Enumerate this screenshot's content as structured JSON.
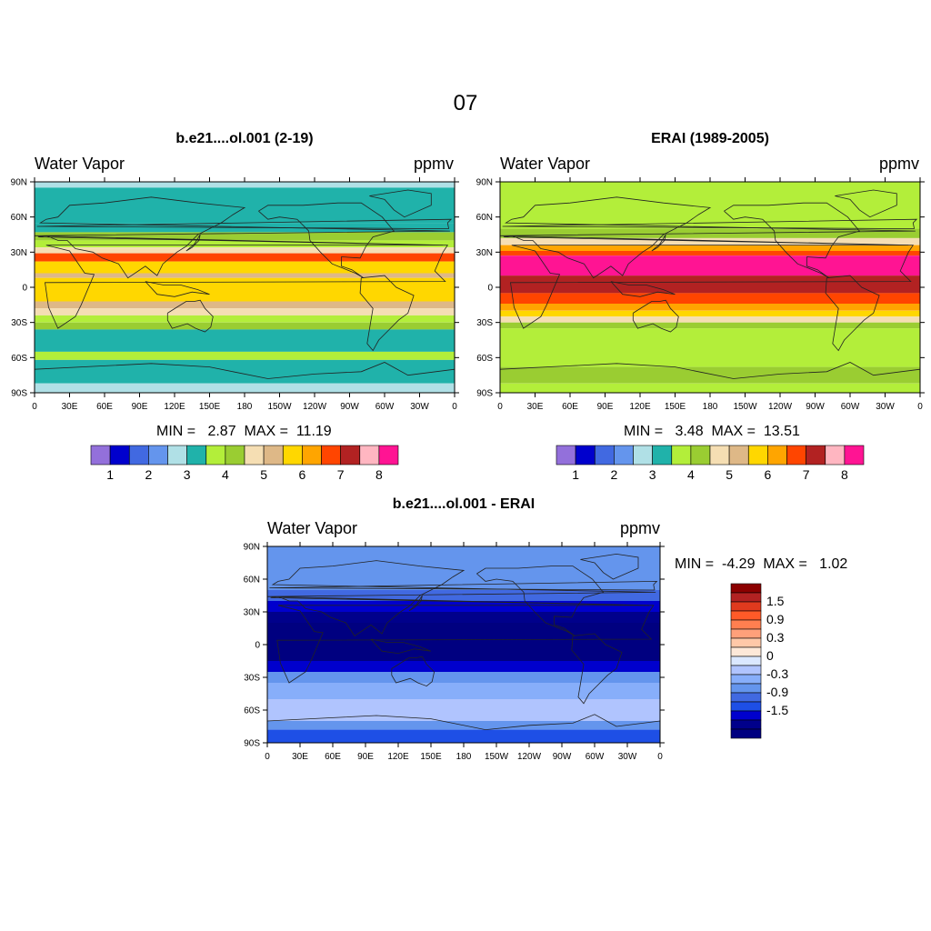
{
  "page_title": "07",
  "lon_ticks": [
    "0",
    "30E",
    "60E",
    "90E",
    "120E",
    "150E",
    "180",
    "150W",
    "120W",
    "90W",
    "60W",
    "30W",
    "0"
  ],
  "lat_ticks": [
    "90N",
    "60N",
    "30N",
    "0",
    "30S",
    "60S",
    "90S"
  ],
  "panels": [
    {
      "title": "b.e21....ol.001 (2-19)",
      "left_label": "Water Vapor",
      "right_label": "ppmv",
      "min_max": "MIN =   2.87  MAX =  11.19",
      "colorbar_labels": [
        "1",
        "2",
        "3",
        "4",
        "5",
        "6",
        "7",
        "8"
      ],
      "bands": [
        {
          "lat": 90,
          "color": "#b0e0e6"
        },
        {
          "lat": 85,
          "color": "#20b2aa"
        },
        {
          "lat": 55,
          "color": "#20b2aa"
        },
        {
          "lat": 47,
          "color": "#9acd32"
        },
        {
          "lat": 40,
          "color": "#b3ee3a"
        },
        {
          "lat": 34,
          "color": "#f5deb3"
        },
        {
          "lat": 29,
          "color": "#ff4500"
        },
        {
          "lat": 22,
          "color": "#ffd700"
        },
        {
          "lat": 12,
          "color": "#deb887"
        },
        {
          "lat": 8,
          "color": "#ffd700"
        },
        {
          "lat": -12,
          "color": "#deb887"
        },
        {
          "lat": -18,
          "color": "#f5deb3"
        },
        {
          "lat": -24,
          "color": "#b3ee3a"
        },
        {
          "lat": -30,
          "color": "#9acd32"
        },
        {
          "lat": -36,
          "color": "#20b2aa"
        },
        {
          "lat": -55,
          "color": "#b3ee3a"
        },
        {
          "lat": -62,
          "color": "#20b2aa"
        },
        {
          "lat": -82,
          "color": "#b0e0e6"
        }
      ]
    },
    {
      "title": "ERAI (1989-2005)",
      "left_label": "Water Vapor",
      "right_label": "ppmv",
      "min_max": "MIN =   3.48  MAX =  13.51",
      "colorbar_labels": [
        "1",
        "2",
        "3",
        "4",
        "5",
        "6",
        "7",
        "8"
      ],
      "bands": [
        {
          "lat": 90,
          "color": "#b3ee3a"
        },
        {
          "lat": 50,
          "color": "#9acd32"
        },
        {
          "lat": 42,
          "color": "#f5deb3"
        },
        {
          "lat": 36,
          "color": "#ffa500"
        },
        {
          "lat": 31,
          "color": "#ff4500"
        },
        {
          "lat": 27,
          "color": "#ff1493"
        },
        {
          "lat": 10,
          "color": "#b22222"
        },
        {
          "lat": -5,
          "color": "#ff4500"
        },
        {
          "lat": -14,
          "color": "#ffa500"
        },
        {
          "lat": -20,
          "color": "#ffd700"
        },
        {
          "lat": -25,
          "color": "#f5deb3"
        },
        {
          "lat": -30,
          "color": "#9acd32"
        },
        {
          "lat": -35,
          "color": "#b3ee3a"
        },
        {
          "lat": -68,
          "color": "#9acd32"
        },
        {
          "lat": -82,
          "color": "#b3ee3a"
        }
      ]
    },
    {
      "title": "b.e21....ol.001 - ERAI",
      "left_label": "Water Vapor",
      "right_label": "ppmv",
      "min_max": "MIN =  -4.29  MAX =   1.02",
      "colorbar_labels": [
        "1.5",
        "0.9",
        "0.3",
        "0",
        "-0.3",
        "-0.9",
        "-1.5"
      ],
      "bands": [
        {
          "lat": 90,
          "color": "#6495ed"
        },
        {
          "lat": 50,
          "color": "#4169e1"
        },
        {
          "lat": 40,
          "color": "#0000cd"
        },
        {
          "lat": 30,
          "color": "#00008b"
        },
        {
          "lat": 20,
          "color": "#000080"
        },
        {
          "lat": -15,
          "color": "#0000cd"
        },
        {
          "lat": -25,
          "color": "#6495ed"
        },
        {
          "lat": -35,
          "color": "#87aefa"
        },
        {
          "lat": -50,
          "color": "#b0c4fe"
        },
        {
          "lat": -70,
          "color": "#6495ed"
        },
        {
          "lat": -78,
          "color": "#1e4fe6"
        }
      ]
    }
  ],
  "colorbar_fill": {
    "abs": [
      "#9370db",
      "#0000cd",
      "#4169e1",
      "#6495ed",
      "#b0e0e6",
      "#20b2aa",
      "#b3ee3a",
      "#9acd32",
      "#f5deb3",
      "#deb887",
      "#ffd700",
      "#ffa500",
      "#ff4500",
      "#b22222",
      "#ffb6c1",
      "#ff1493"
    ],
    "diff": [
      "#8b0000",
      "#b22222",
      "#e03a1e",
      "#ff5a28",
      "#ff7f50",
      "#ffa07a",
      "#ffc8a8",
      "#fde8d8",
      "#dbe8ff",
      "#b0c4fe",
      "#87aefa",
      "#6495ed",
      "#4169e1",
      "#1e4fe6",
      "#0000cd",
      "#00008b",
      "#000080"
    ]
  }
}
